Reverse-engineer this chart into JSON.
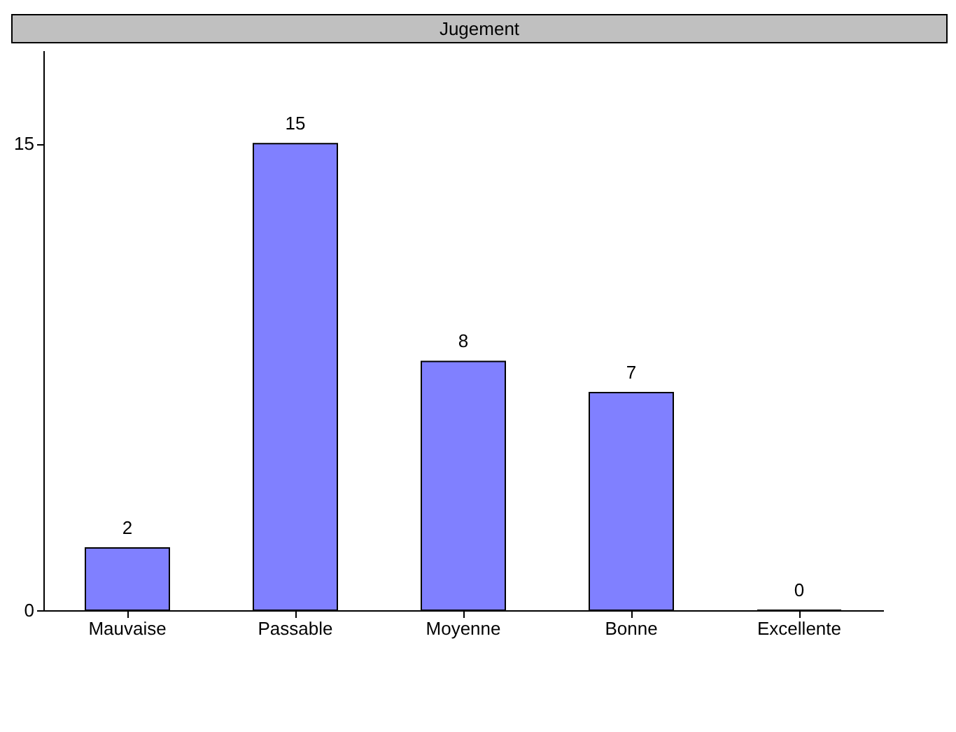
{
  "chart_data": {
    "type": "bar",
    "title": "Jugement",
    "categories": [
      "Mauvaise",
      "Passable",
      "Moyenne",
      "Bonne",
      "Excellente"
    ],
    "values": [
      2,
      15,
      8,
      7,
      0
    ],
    "color": "#8080ff",
    "ylim": [
      0,
      18
    ],
    "yticks": [
      0,
      15
    ],
    "grid": false,
    "data_labels": true
  }
}
